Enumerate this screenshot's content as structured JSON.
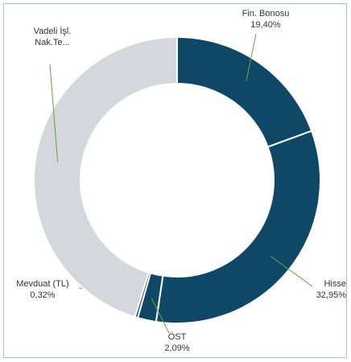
{
  "chart_data": {
    "type": "donut",
    "categories": [
      "Fin. Bonosu",
      "Hisse",
      "ÖST",
      "Mevduat (TL)",
      "Vadeli İşl. Nak.Te..."
    ],
    "values": [
      19.4,
      32.95,
      2.09,
      0.32,
      45.24
    ],
    "value_labels": [
      "19,40%",
      "32,95%",
      "2,09%",
      "0,32%",
      null
    ],
    "colors": [
      "#0f4766",
      "#0f4766",
      "#0f4766",
      "#0f4766",
      "#d4d8dd"
    ]
  }
}
